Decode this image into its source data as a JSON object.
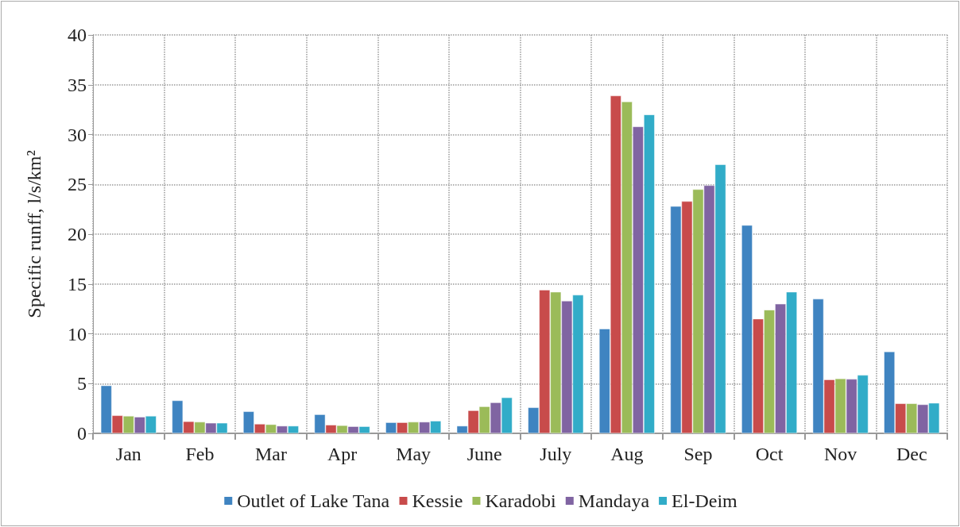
{
  "chart_data": {
    "type": "bar",
    "ylabel": "Specific runff, l/s/km²",
    "categories": [
      "Jan",
      "Feb",
      "Mar",
      "Apr",
      "May",
      "June",
      "July",
      "Aug",
      "Sep",
      "Oct",
      "Nov",
      "Dec"
    ],
    "series": [
      {
        "name": "Outlet of Lake Tana",
        "color": "#3f84c1",
        "values": [
          4.8,
          3.3,
          2.2,
          1.9,
          1.1,
          0.75,
          2.6,
          10.5,
          22.8,
          20.9,
          13.5,
          8.2
        ]
      },
      {
        "name": "Kessie",
        "color": "#c84b4b",
        "values": [
          1.8,
          1.2,
          0.95,
          0.85,
          1.1,
          2.3,
          14.4,
          33.9,
          23.3,
          11.5,
          5.4,
          3.0
        ]
      },
      {
        "name": "Karadobi",
        "color": "#9bbb59",
        "values": [
          1.75,
          1.15,
          0.9,
          0.8,
          1.15,
          2.7,
          14.2,
          33.3,
          24.5,
          12.4,
          5.5,
          3.0
        ]
      },
      {
        "name": "Mandaya",
        "color": "#8064a2",
        "values": [
          1.65,
          1.05,
          0.75,
          0.7,
          1.15,
          3.1,
          13.3,
          30.8,
          24.9,
          13.0,
          5.45,
          2.9
        ]
      },
      {
        "name": "El-Deim",
        "color": "#31acc8",
        "values": [
          1.75,
          1.05,
          0.75,
          0.7,
          1.25,
          3.6,
          13.9,
          32.0,
          27.0,
          14.2,
          5.85,
          3.05
        ]
      }
    ],
    "ylim": [
      0,
      40
    ],
    "yticks": [
      0,
      5,
      10,
      15,
      20,
      25,
      30,
      35,
      40
    ],
    "grid": true,
    "legend": "bottom"
  }
}
